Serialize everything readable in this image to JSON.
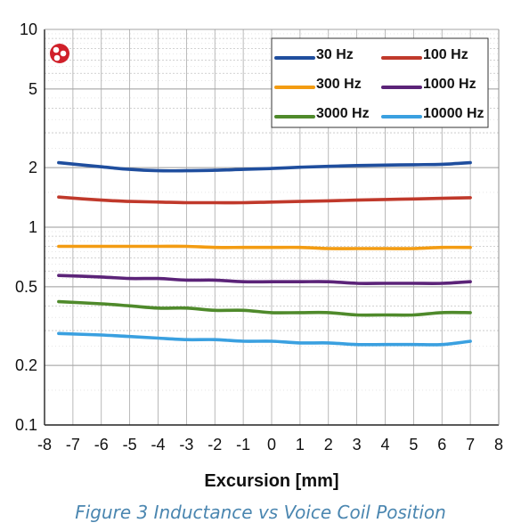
{
  "caption": "Figure 3 Inductance vs Voice Coil Position",
  "chart_data": {
    "type": "line",
    "title": "",
    "xlabel": "Excursion [mm]",
    "ylabel": "",
    "xlim": [
      -8,
      8
    ],
    "ylim": [
      0.1,
      10
    ],
    "yscale": "log",
    "xticks": [
      "-8",
      "-7",
      "-6",
      "-5",
      "-4",
      "-3",
      "-2",
      "-1",
      "0",
      "1",
      "2",
      "3",
      "4",
      "5",
      "6",
      "7",
      "8"
    ],
    "yticks": [
      "0.1",
      "0.2",
      "0.5",
      "1",
      "2",
      "5",
      "10"
    ],
    "grid": "on",
    "legend_position": "top-right",
    "x": [
      -7.5,
      -6,
      -5,
      -4,
      -3,
      -2,
      -1,
      0,
      1,
      2,
      3,
      4,
      5,
      6,
      7
    ],
    "series": [
      {
        "name": "30 Hz",
        "color": "#1f4e9e",
        "values": [
          2.12,
          2.02,
          1.96,
          1.93,
          1.93,
          1.94,
          1.96,
          1.98,
          2.01,
          2.03,
          2.05,
          2.06,
          2.07,
          2.08,
          2.12
        ]
      },
      {
        "name": "100 Hz",
        "color": "#c0392b",
        "values": [
          1.42,
          1.37,
          1.35,
          1.34,
          1.33,
          1.33,
          1.33,
          1.34,
          1.35,
          1.36,
          1.37,
          1.38,
          1.39,
          1.4,
          1.41
        ]
      },
      {
        "name": "300 Hz",
        "color": "#f39c12",
        "values": [
          0.8,
          0.8,
          0.8,
          0.8,
          0.8,
          0.79,
          0.79,
          0.79,
          0.79,
          0.78,
          0.78,
          0.78,
          0.78,
          0.79,
          0.79
        ]
      },
      {
        "name": "1000 Hz",
        "color": "#5b2378",
        "values": [
          0.57,
          0.56,
          0.55,
          0.55,
          0.54,
          0.54,
          0.53,
          0.53,
          0.53,
          0.53,
          0.52,
          0.52,
          0.52,
          0.52,
          0.53
        ]
      },
      {
        "name": "3000 Hz",
        "color": "#4f8a2b",
        "values": [
          0.42,
          0.41,
          0.4,
          0.39,
          0.39,
          0.38,
          0.38,
          0.37,
          0.37,
          0.37,
          0.36,
          0.36,
          0.36,
          0.37,
          0.37
        ]
      },
      {
        "name": "10000 Hz",
        "color": "#3aa0e0",
        "values": [
          0.29,
          0.285,
          0.28,
          0.275,
          0.27,
          0.27,
          0.265,
          0.265,
          0.26,
          0.26,
          0.255,
          0.255,
          0.255,
          0.255,
          0.265
        ]
      }
    ]
  },
  "logo_icon": "red-circle-logo-icon"
}
